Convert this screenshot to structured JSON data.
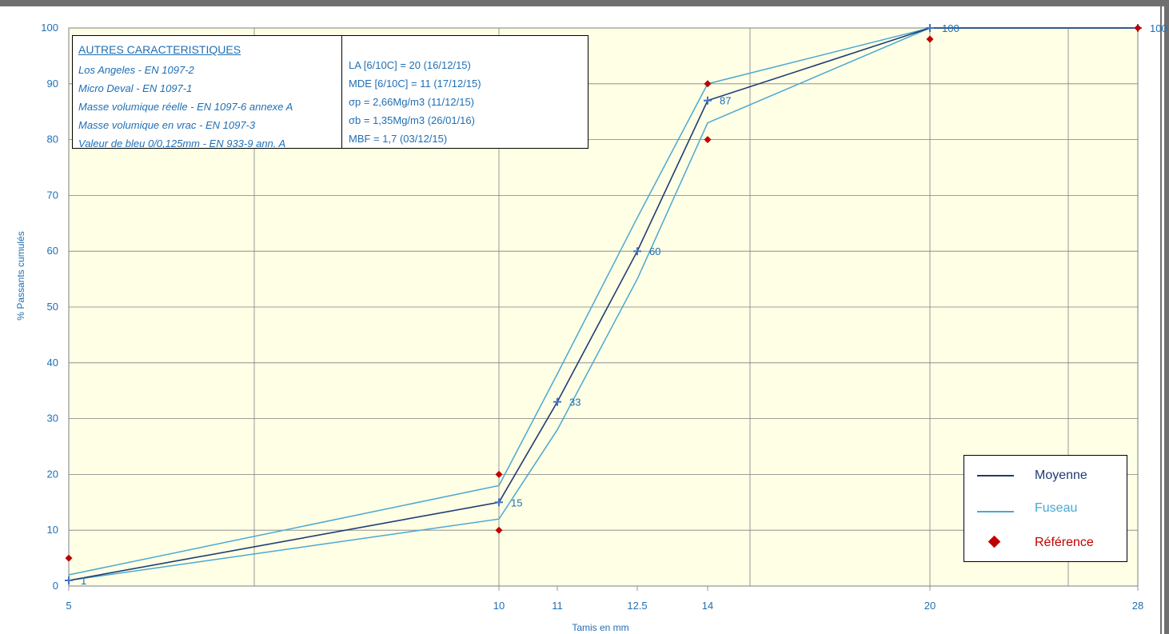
{
  "chart_data": {
    "type": "line",
    "xlabel": "Tamis en mm",
    "ylabel": "% Passants cumulés",
    "ylim": [
      0,
      100
    ],
    "yticks": [
      0,
      10,
      20,
      30,
      40,
      50,
      60,
      70,
      80,
      90,
      100
    ],
    "xticks": [
      "5",
      "10",
      "11",
      "12.5",
      "14",
      "20",
      "28"
    ],
    "grid": true,
    "series": [
      {
        "name": "Moyenne",
        "color": "#1f3b73",
        "marker": "plus",
        "x": [
          5,
          10,
          11,
          12.5,
          14,
          20,
          28
        ],
        "y": [
          1,
          15,
          33,
          60,
          87,
          100,
          100
        ],
        "labels": [
          "1",
          "15",
          "33",
          "60",
          "87",
          "100",
          "100"
        ]
      },
      {
        "name": "Fuseau",
        "color": "#4aa8d0",
        "x": [
          5,
          10,
          11,
          12.5,
          14,
          20,
          28
        ],
        "y": [
          2,
          18,
          38,
          66,
          90,
          100,
          100
        ]
      },
      {
        "name": "",
        "color": "#4aa8d0",
        "x": [
          5,
          10,
          11,
          12.5,
          14,
          20,
          28
        ],
        "y": [
          1,
          12,
          28,
          55,
          83,
          100,
          100
        ]
      },
      {
        "name": "Référence",
        "color": "#c00000",
        "marker": "diamond",
        "x": [
          5,
          10,
          10,
          14,
          14,
          20,
          28
        ],
        "y": [
          5,
          20,
          10,
          90,
          80,
          98,
          100
        ]
      }
    ]
  },
  "info_table": {
    "heading": "AUTRES CARACTERISTIQUES",
    "rows": [
      {
        "label": "Los Angeles - EN 1097-2",
        "value": "LA [6/10C] = 20 (16/12/15)"
      },
      {
        "label": "Micro Deval - EN 1097-1",
        "value": "MDE [6/10C] = 11 (17/12/15)"
      },
      {
        "label": "Masse volumique réelle - EN 1097-6 annexe A",
        "value": "σp = 2,66Mg/m3 (11/12/15)"
      },
      {
        "label": "Masse volumique en vrac - EN 1097-3",
        "value": "σb = 1,35Mg/m3 (26/01/16)"
      },
      {
        "label": "Valeur de bleu 0/0,125mm - EN 933-9 ann. A",
        "value": "MBF = 1,7 (03/12/15)"
      }
    ]
  },
  "legend": {
    "items": [
      {
        "label": "Moyenne",
        "color": "#1f3b73"
      },
      {
        "label": "Fuseau",
        "color": "#4aa8d0"
      },
      {
        "label": "Référence",
        "color": "#c00000"
      }
    ]
  },
  "colors": {
    "plot_bg": "#ffffe6",
    "text": "#1f6fb4",
    "grid": "#7f7f7f"
  }
}
